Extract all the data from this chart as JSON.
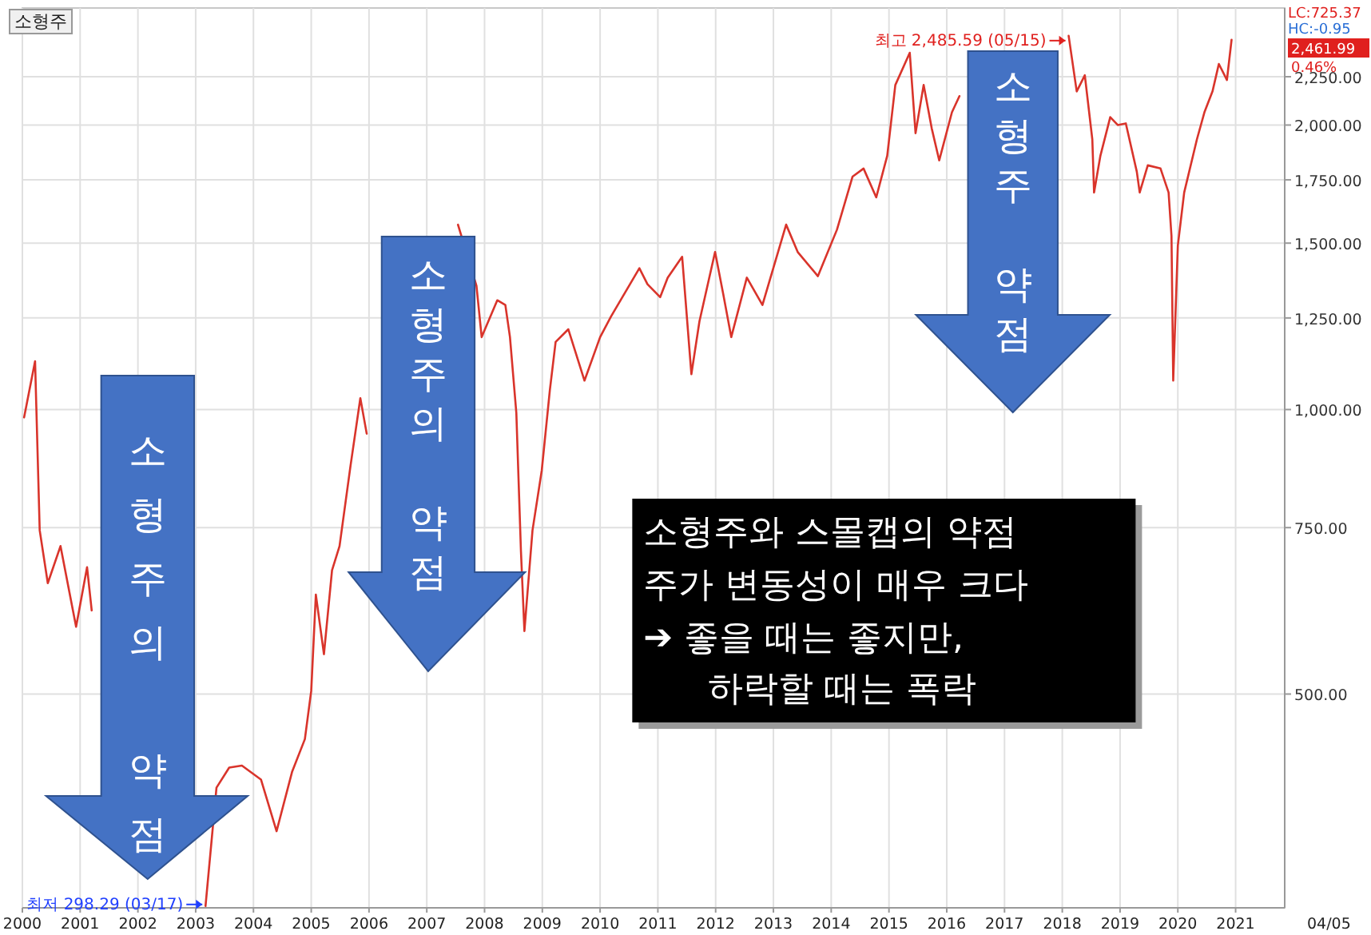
{
  "chart_data": {
    "type": "line",
    "title": "소형주",
    "log": "y",
    "grid": true,
    "xlim": [
      2000,
      2021.85
    ],
    "ylim": [
      297,
      2660
    ],
    "xticks": [
      2000,
      2001,
      2002,
      2003,
      2004,
      2005,
      2006,
      2007,
      2008,
      2009,
      2010,
      2011,
      2012,
      2013,
      2014,
      2015,
      2016,
      2017,
      2018,
      2019,
      2020,
      2021
    ],
    "yticks": [
      {
        "value": 500,
        "label": "500.00"
      },
      {
        "value": 750,
        "label": "750.00"
      },
      {
        "value": 1000,
        "label": "1,000.00"
      },
      {
        "value": 1250,
        "label": "1,250.00"
      },
      {
        "value": 1500,
        "label": "1,500.00"
      },
      {
        "value": 1750,
        "label": "1,750.00"
      },
      {
        "value": 2000,
        "label": "2,000.00"
      },
      {
        "value": 2250,
        "label": "2,250.00"
      }
    ],
    "series": [
      {
        "color": "#d9342b",
        "x": [
          2000.03,
          2000.22,
          2000.3,
          2000.44,
          2000.66,
          2000.93,
          2001.12,
          2001.2
        ],
        "values": [
          981,
          1125,
          745,
          655,
          717,
          589,
          681,
          613
        ]
      },
      {
        "color": "#d9342b",
        "x": [
          2003.17,
          2003.36,
          2003.58,
          2003.8,
          2004.13,
          2004.4,
          2004.67,
          2004.89,
          2005.0,
          2005.08,
          2005.22,
          2005.36,
          2005.49,
          2005.68,
          2005.85,
          2005.96
        ],
        "values": [
          298.29,
          398,
          418,
          420,
          406,
          358,
          414,
          448,
          504,
          637,
          551,
          676,
          717,
          872,
          1028,
          943
        ]
      },
      {
        "color": "#d9342b",
        "x": [
          2007.54,
          2007.86,
          2007.95,
          2008.22,
          2008.36,
          2008.44,
          2008.55,
          2008.63,
          2008.69,
          2008.83,
          2008.99,
          2009.13,
          2009.23,
          2009.45,
          2009.73,
          2010.0,
          2010.19,
          2010.68,
          2010.82,
          2011.04,
          2011.17,
          2011.42,
          2011.58,
          2011.72,
          2011.99,
          2012.13,
          2012.27,
          2012.54,
          2012.81,
          2013.22,
          2013.42,
          2013.77,
          2014.1,
          2014.37,
          2014.56,
          2014.78,
          2014.97,
          2015.11,
          2015.36,
          2015.46,
          2015.6,
          2015.74,
          2015.87,
          2016.09,
          2016.22
        ],
        "values": [
          1569,
          1352,
          1193,
          1305,
          1290,
          1193,
          992,
          708,
          583,
          745,
          862,
          1048,
          1179,
          1216,
          1073,
          1193,
          1255,
          1411,
          1357,
          1315,
          1379,
          1451,
          1090,
          1240,
          1468,
          1326,
          1193,
          1379,
          1290,
          1569,
          1468,
          1384,
          1550,
          1764,
          1799,
          1677,
          1856,
          2205,
          2385,
          1961,
          2205,
          1984,
          1835,
          2063,
          2146
        ]
      },
      {
        "color": "#d9342b",
        "x": [
          2018.11,
          2018.25,
          2018.39,
          2018.52,
          2018.55,
          2018.66,
          2018.83,
          2018.96,
          2019.1,
          2019.29,
          2019.34,
          2019.48,
          2019.7,
          2019.84,
          2019.89,
          2019.92,
          2020.0,
          2020.11,
          2020.33,
          2020.46,
          2020.6,
          2020.71,
          2020.85,
          2020.93
        ],
        "values": [
          2485.59,
          2171,
          2258,
          1931,
          1697,
          1856,
          2039,
          2000,
          2008,
          1785,
          1697,
          1813,
          1799,
          1697,
          1526,
          1073,
          1491,
          1697,
          1931,
          2063,
          2171,
          2321,
          2232,
          2461.99
        ]
      }
    ],
    "annotations": [
      {
        "text": "최고 2,485.59 (05/15)",
        "x": 2018.11,
        "y": 2485.59
      },
      {
        "text": "최저 298.29 (03/17)",
        "x": 2003.17,
        "y": 298.29
      },
      "LC:725.37",
      "HC:-0.95",
      "2,461.99",
      "0.46%",
      "소형주의 약점",
      "소형주의 약점",
      "소형주 약점",
      "소형주와 스몰캡의 약점",
      "주가 변동성이 매우 크다",
      "➔ 좋을 때는 좋지만,",
      "하락할 때는 폭락",
      "04/05"
    ]
  }
}
